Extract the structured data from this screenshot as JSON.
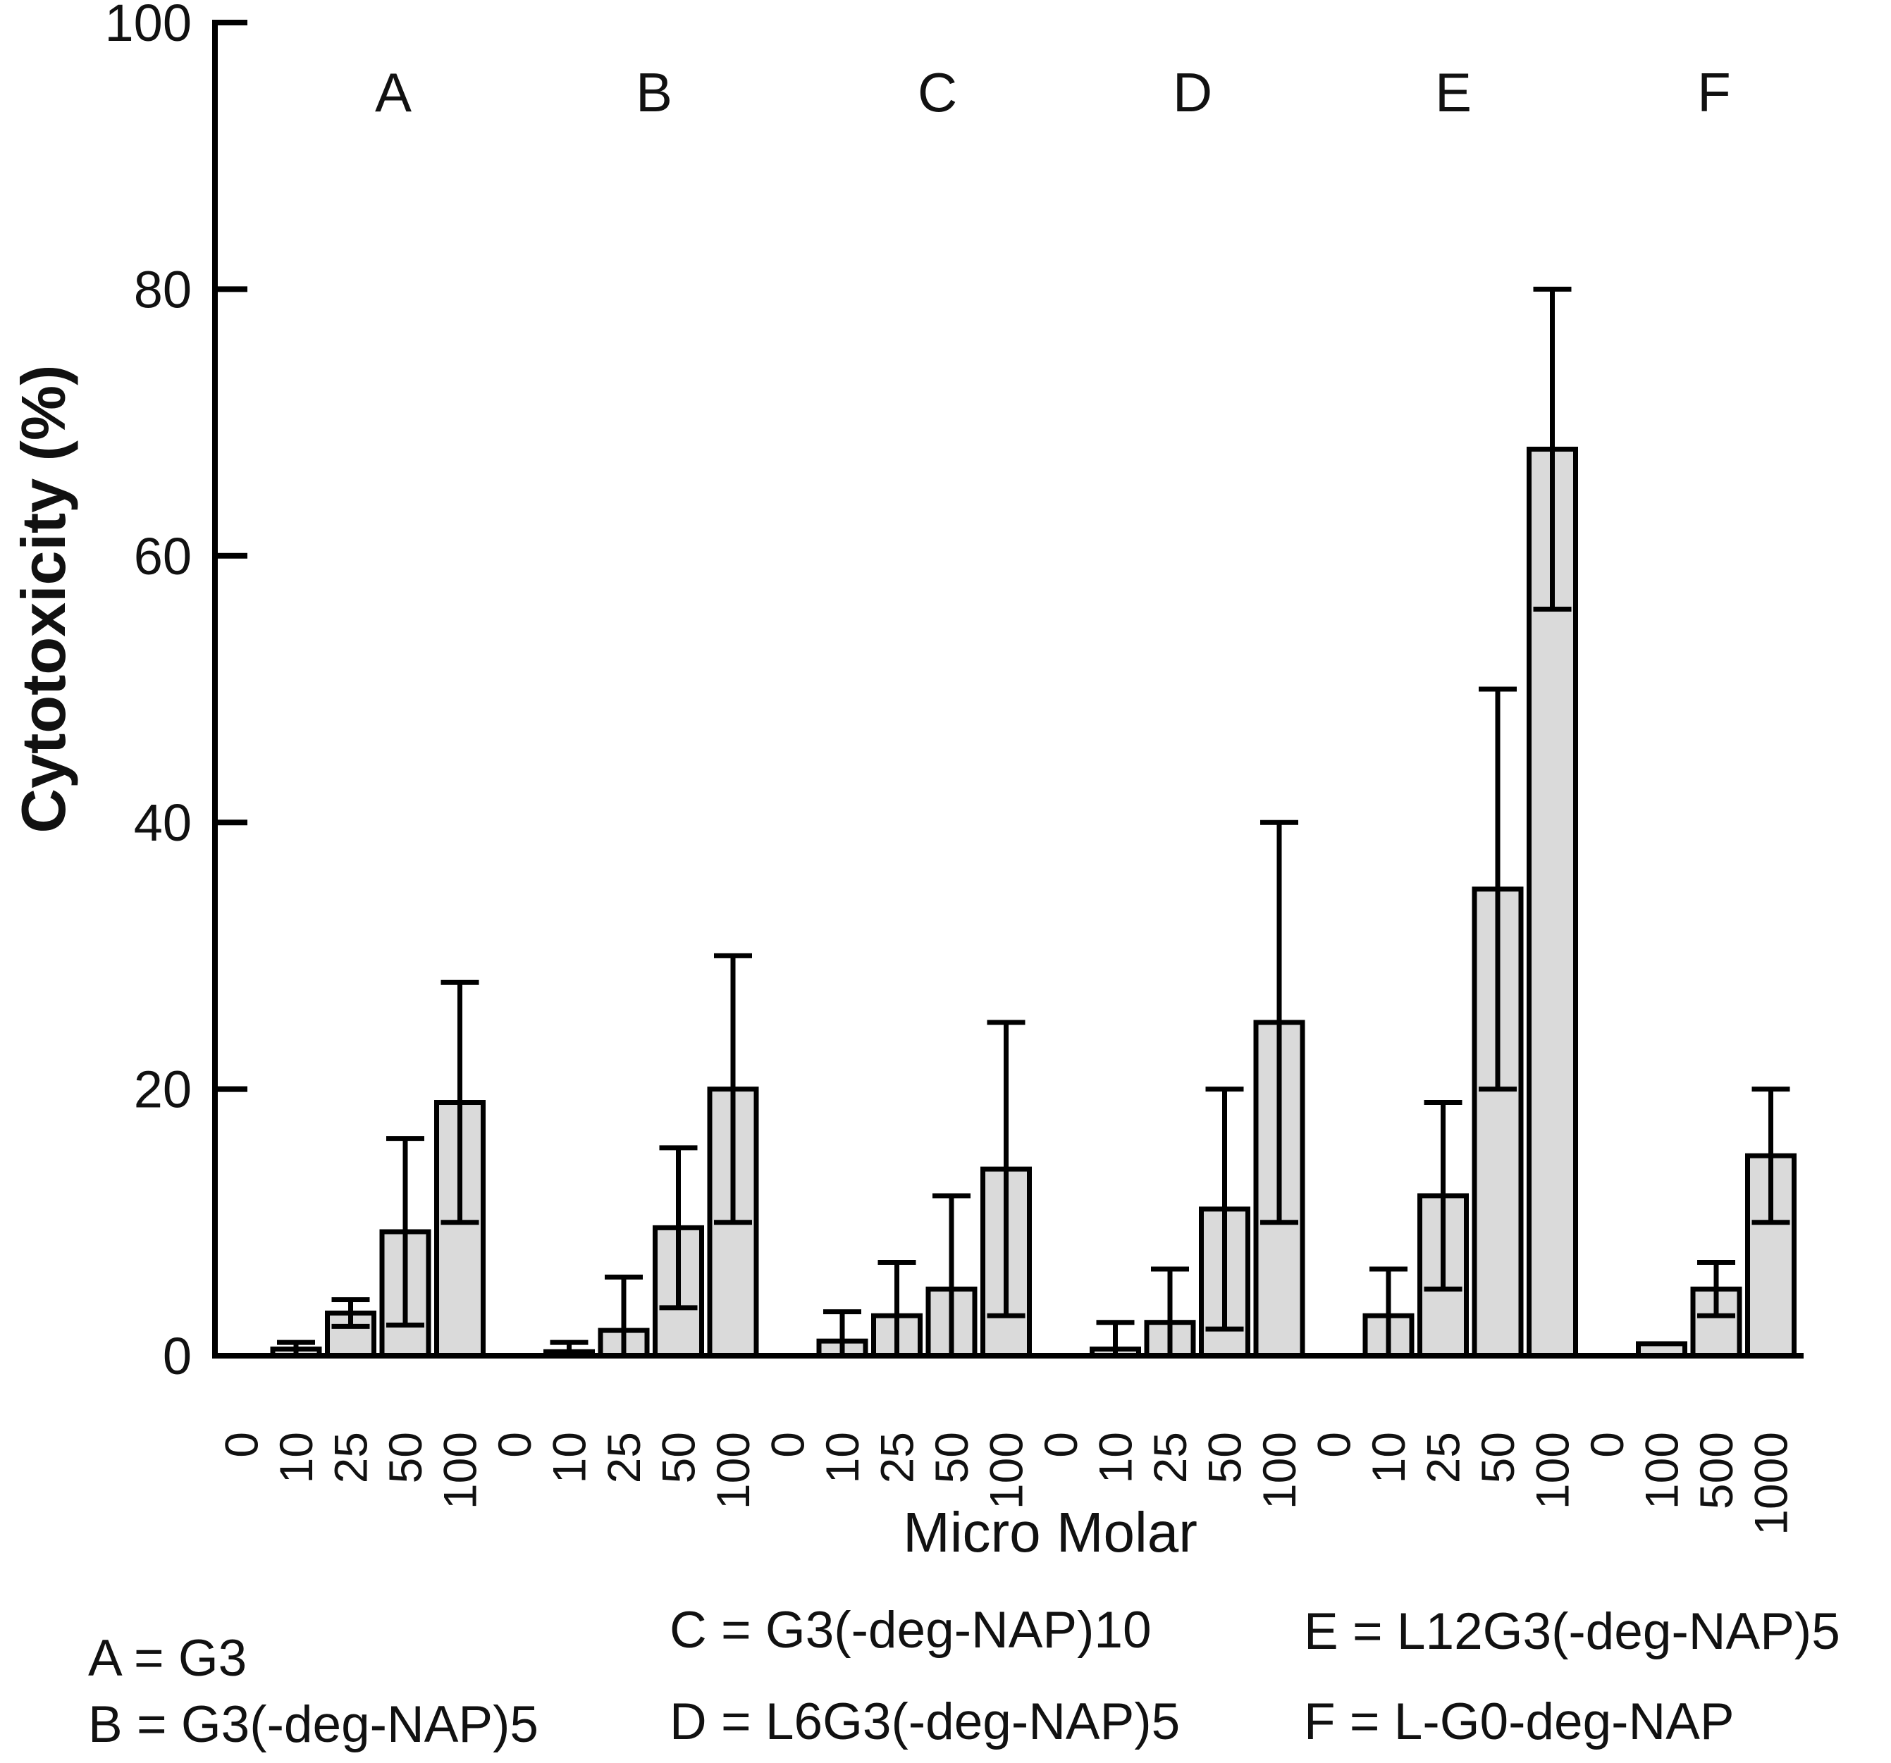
{
  "chart_data": {
    "type": "bar",
    "title": "",
    "ylabel": "Cytotoxicity (%)",
    "xlabel": "Micro Molar",
    "ylim": [
      0,
      100
    ],
    "y_ticks": [
      0,
      20,
      40,
      60,
      80,
      100
    ],
    "y_tick_labels": [
      "0",
      "20",
      "40",
      "60",
      "80",
      "100"
    ],
    "grid": false,
    "legend_position": "bottom",
    "colors": {
      "bar_fill": "#dadada",
      "bar_stroke": "#000000",
      "axis_stroke": "#000000",
      "background": "#ffffff"
    },
    "groups": [
      {
        "letter": "A",
        "name": "G3",
        "legend_label": "A = G3",
        "categories": [
          "0",
          "10",
          "25",
          "50",
          "100"
        ],
        "values": [
          0,
          0.5,
          3.2,
          9.3,
          19
        ],
        "errors": [
          0,
          0.5,
          1,
          7,
          9
        ]
      },
      {
        "letter": "B",
        "name": "G3(-deg-NAP)5",
        "legend_label": "B = G3(-deg-NAP)5",
        "categories": [
          "0",
          "10",
          "25",
          "50",
          "100"
        ],
        "values": [
          0,
          0.3,
          1.9,
          9.6,
          20
        ],
        "errors": [
          0,
          0.7,
          4,
          6,
          10
        ]
      },
      {
        "letter": "C",
        "name": "G3(-deg-NAP)10",
        "legend_label": "C = G3(-deg-NAP)10",
        "categories": [
          "0",
          "10",
          "25",
          "50",
          "100"
        ],
        "values": [
          0,
          1.1,
          3,
          5,
          14
        ],
        "errors": [
          0,
          2.2,
          4,
          7,
          11
        ]
      },
      {
        "letter": "D",
        "name": "L6G3(-deg-NAP)5",
        "legend_label": "D = L6G3(-deg-NAP)5",
        "categories": [
          "0",
          "10",
          "25",
          "50",
          "100"
        ],
        "values": [
          0,
          0.5,
          2.5,
          11,
          25
        ],
        "errors": [
          0,
          2,
          4,
          9,
          15
        ]
      },
      {
        "letter": "E",
        "name": "L12G3(-deg-NAP)5",
        "legend_label": "E = L12G3(-deg-NAP)5",
        "categories": [
          "0",
          "10",
          "25",
          "50",
          "100"
        ],
        "values": [
          0,
          3,
          12,
          35,
          68
        ],
        "errors": [
          0,
          3.5,
          7,
          15,
          12
        ]
      },
      {
        "letter": "F",
        "name": "L-G0-deg-NAP",
        "legend_label": "F = L-G0-deg-NAP",
        "categories": [
          "0",
          "100",
          "500",
          "1000"
        ],
        "values": [
          0,
          0.9,
          5,
          15
        ],
        "errors": [
          0,
          0,
          2,
          5
        ]
      }
    ]
  }
}
